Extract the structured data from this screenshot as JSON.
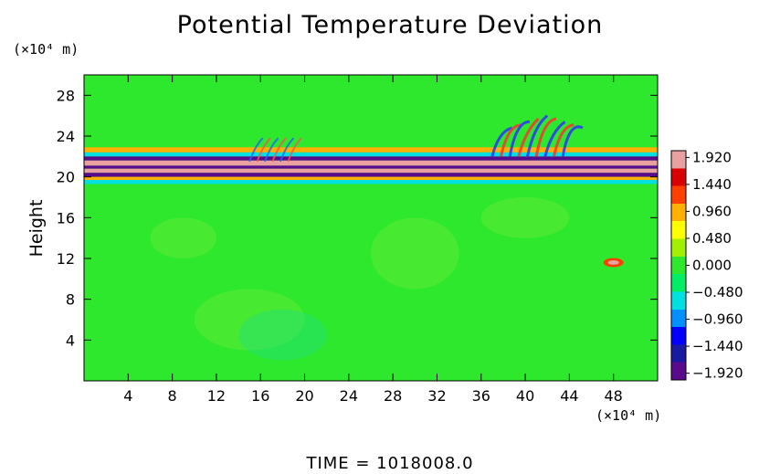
{
  "chart_data": {
    "type": "heatmap",
    "title": "Potential Temperature Deviation",
    "ylabel": "Height",
    "y_unit": "(×10⁴ m)",
    "x_unit": "(×10⁴ m)",
    "footer": "TIME = 1018008.0",
    "x_range": [
      0,
      52
    ],
    "y_range": [
      0,
      30
    ],
    "x_ticks": [
      4,
      8,
      12,
      16,
      20,
      24,
      28,
      32,
      36,
      40,
      44,
      48
    ],
    "y_ticks": [
      4,
      8,
      12,
      16,
      20,
      24,
      28
    ],
    "colorbar": {
      "min": -2.04,
      "max": 2.04,
      "ticks": [
        1.92,
        1.44,
        0.96,
        0.48,
        0.0,
        -0.48,
        -0.96,
        -1.44,
        -1.92
      ],
      "tick_labels": [
        "1.920",
        "1.440",
        "0.960",
        "0.480",
        "0.000",
        "−0.480",
        "−0.960",
        "−1.440",
        "−1.920"
      ],
      "colors": [
        "#5a0a8c",
        "#1a1aa0",
        "#0000ff",
        "#0090ff",
        "#00e0e0",
        "#00ee66",
        "#2ee82e",
        "#a0f000",
        "#ffff00",
        "#ffb000",
        "#ff4000",
        "#d80000",
        "#e8a0a0"
      ]
    },
    "background_value": 0.0,
    "features": [
      {
        "name": "upper warm layer",
        "y": 22.5,
        "value": 1.2
      },
      {
        "name": "mid band",
        "y": 21.0,
        "value": 2.0
      },
      {
        "name": "lower cold band",
        "y": 20.2,
        "value": -1.9
      },
      {
        "name": "wave packet",
        "x": [
          38,
          44
        ],
        "y": [
          22,
          26
        ],
        "value": 1.5
      },
      {
        "name": "small warm patch",
        "x": 48,
        "y": 11.5,
        "value": 1.3
      }
    ]
  }
}
